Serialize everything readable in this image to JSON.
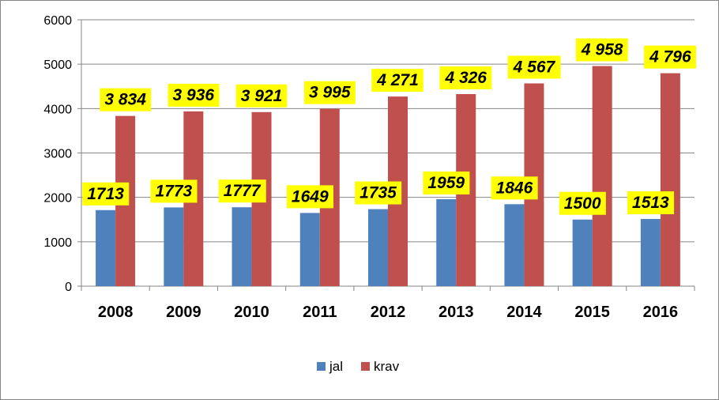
{
  "chart_data": {
    "type": "bar",
    "categories": [
      "2008",
      "2009",
      "2010",
      "2011",
      "2012",
      "2013",
      "2014",
      "2015",
      "2016"
    ],
    "series": [
      {
        "name": "jal",
        "color": "#4F81BD",
        "values": [
          1713,
          1773,
          1777,
          1649,
          1735,
          1959,
          1846,
          1500,
          1513
        ],
        "labels": [
          "1713",
          "1773",
          "1777",
          "1649",
          "1735",
          "1959",
          "1846",
          "1500",
          "1513"
        ]
      },
      {
        "name": "krav",
        "color": "#C0504D",
        "values": [
          3834,
          3936,
          3921,
          3995,
          4271,
          4326,
          4567,
          4958,
          4796
        ],
        "labels": [
          "3 834",
          "3 936",
          "3 921",
          "3 995",
          "4 271",
          "4 326",
          "4 567",
          "4 958",
          "4 796"
        ]
      }
    ],
    "ylim": [
      0,
      6000
    ],
    "yticks": [
      0,
      1000,
      2000,
      3000,
      4000,
      5000,
      6000
    ],
    "title": "",
    "xlabel": "",
    "ylabel": "",
    "grid": true,
    "legend_position": "bottom",
    "label_background": "#FFFF00"
  }
}
